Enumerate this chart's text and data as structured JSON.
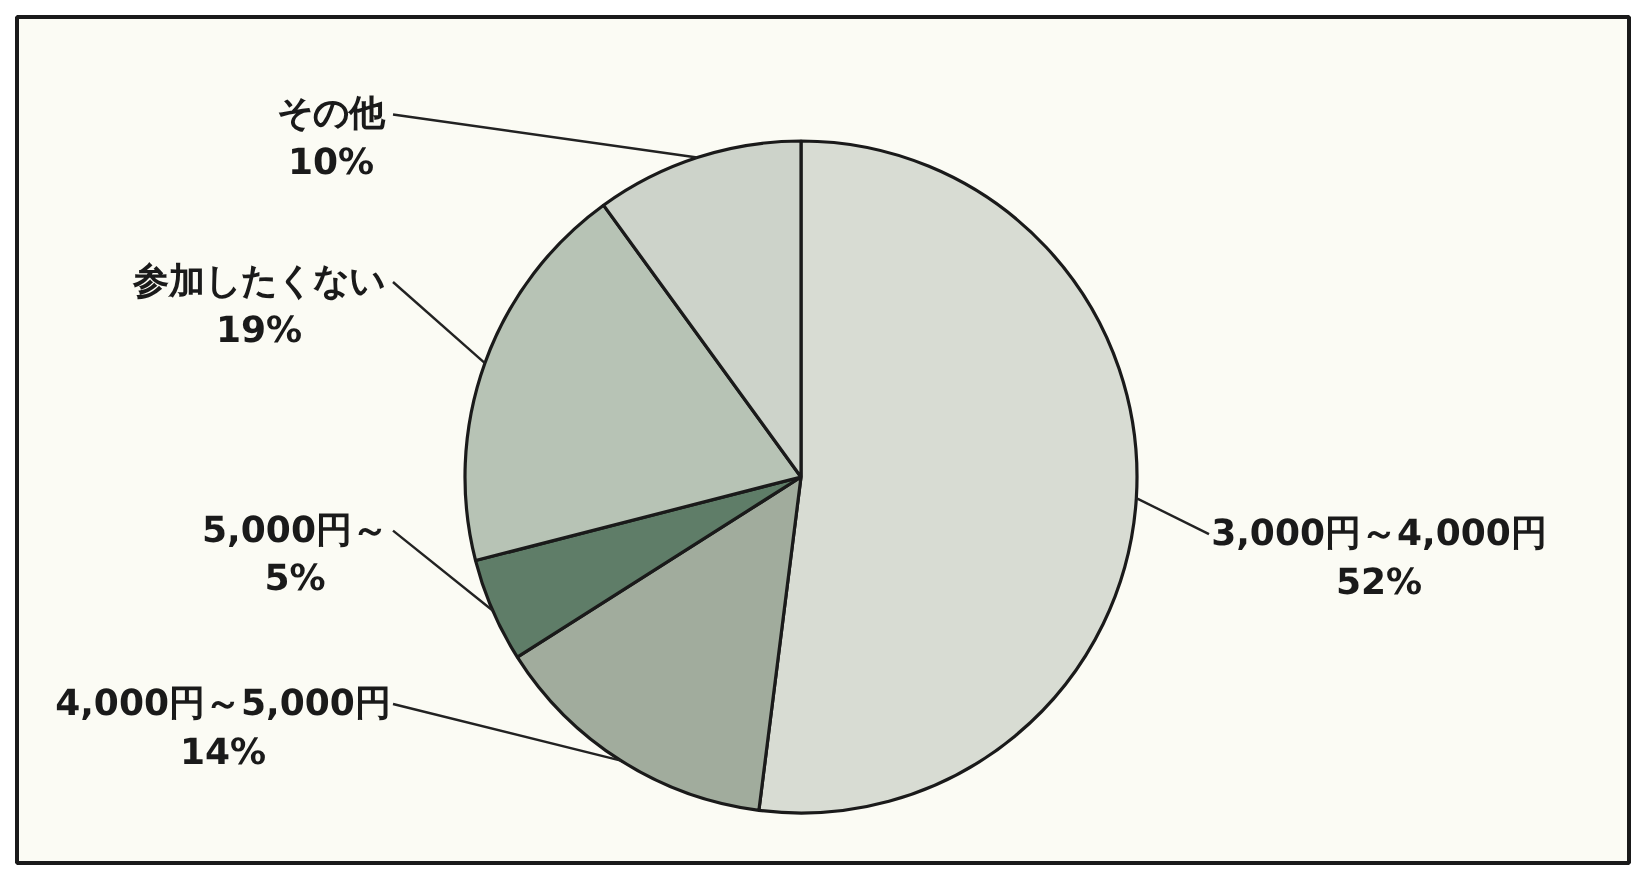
{
  "chart_data": {
    "type": "pie",
    "categories": [
      "3,000円～4,000円",
      "4,000円～5,000円",
      "5,000円～",
      "参加したくない",
      "その他"
    ],
    "values": [
      52,
      14,
      5,
      19,
      10
    ],
    "colors": [
      "#d8dcd3",
      "#a1ac9d",
      "#5f7d68",
      "#b7c3b5",
      "#cdd3ca"
    ],
    "value_labels": [
      "52%",
      "14%",
      "5%",
      "19%",
      "10%"
    ]
  }
}
